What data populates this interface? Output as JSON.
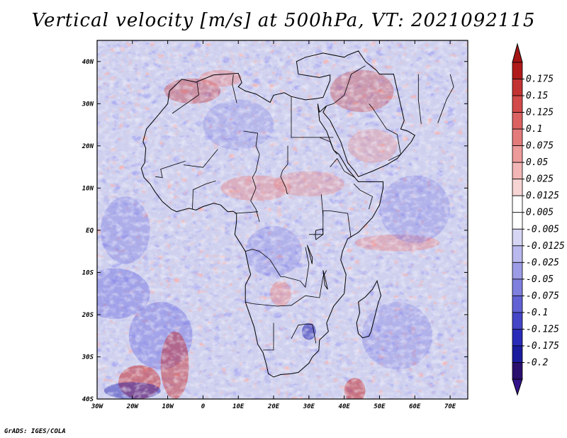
{
  "title": "Vertical velocity [m/s] at 500hPa, VT: 2021092115",
  "footer": "GrADS: IGES/COLA",
  "map": {
    "lon_range": [
      -30,
      75
    ],
    "lat_range": [
      -40,
      45
    ],
    "lat_ticks": [
      {
        "lat": 40,
        "label": "40N"
      },
      {
        "lat": 30,
        "label": "30N"
      },
      {
        "lat": 20,
        "label": "20N"
      },
      {
        "lat": 10,
        "label": "10N"
      },
      {
        "lat": 0,
        "label": "EQ"
      },
      {
        "lat": -10,
        "label": "10S"
      },
      {
        "lat": -20,
        "label": "20S"
      },
      {
        "lat": -30,
        "label": "30S"
      },
      {
        "lat": -40,
        "label": "40S"
      }
    ],
    "lon_ticks": [
      {
        "lon": -30,
        "label": "30W"
      },
      {
        "lon": -20,
        "label": "20W"
      },
      {
        "lon": -10,
        "label": "10W"
      },
      {
        "lon": 0,
        "label": "0"
      },
      {
        "lon": 10,
        "label": "10E"
      },
      {
        "lon": 20,
        "label": "20E"
      },
      {
        "lon": 30,
        "label": "30E"
      },
      {
        "lon": 40,
        "label": "40E"
      },
      {
        "lon": 50,
        "label": "50E"
      },
      {
        "lon": 60,
        "label": "60E"
      },
      {
        "lon": 70,
        "label": "70E"
      }
    ],
    "coastline_lonlat": [
      [
        -17,
        21
      ],
      [
        -16,
        24
      ],
      [
        -13,
        27
      ],
      [
        -10,
        30
      ],
      [
        -9.5,
        33
      ],
      [
        -6,
        35.8
      ],
      [
        -2,
        35.1
      ],
      [
        3,
        36.8
      ],
      [
        10,
        37.2
      ],
      [
        11,
        35
      ],
      [
        10,
        34
      ],
      [
        12,
        33
      ],
      [
        15,
        32.3
      ],
      [
        19,
        30.3
      ],
      [
        20,
        32
      ],
      [
        23,
        32.6
      ],
      [
        25,
        31.7
      ],
      [
        29,
        30.9
      ],
      [
        32,
        31.2
      ],
      [
        34,
        31.5
      ],
      [
        35,
        33.5
      ],
      [
        36,
        35.5
      ],
      [
        36,
        36.8
      ],
      [
        33,
        36.2
      ],
      [
        30,
        36.6
      ],
      [
        27,
        37
      ],
      [
        26.5,
        40
      ],
      [
        29,
        41
      ],
      [
        34,
        42
      ],
      [
        40,
        41
      ],
      [
        41,
        41.5
      ],
      [
        44,
        42.5
      ],
      [
        46,
        40
      ],
      [
        49,
        38
      ],
      [
        50,
        37
      ],
      [
        54,
        37
      ],
      [
        57,
        26
      ],
      [
        56,
        24
      ],
      [
        58,
        23.5
      ],
      [
        60,
        22.5
      ],
      [
        59,
        21
      ],
      [
        55,
        17
      ],
      [
        52,
        15.5
      ],
      [
        48,
        14
      ],
      [
        44,
        12.7
      ],
      [
        43,
        14
      ],
      [
        41,
        16
      ],
      [
        39,
        21
      ],
      [
        36,
        26
      ],
      [
        34,
        28
      ],
      [
        35,
        29.5
      ],
      [
        33,
        28
      ],
      [
        32.5,
        30
      ],
      [
        33,
        26
      ],
      [
        35,
        23.5
      ],
      [
        37,
        19
      ],
      [
        38.5,
        18
      ],
      [
        41,
        14.5
      ],
      [
        43.2,
        12.3
      ],
      [
        44,
        11.5
      ],
      [
        51,
        11.5
      ],
      [
        51,
        10
      ],
      [
        50,
        6
      ],
      [
        48,
        3
      ],
      [
        44,
        -0.5
      ],
      [
        41,
        -2
      ],
      [
        39.5,
        -5
      ],
      [
        39,
        -7
      ],
      [
        40.5,
        -10.5
      ],
      [
        40,
        -15
      ],
      [
        37,
        -18
      ],
      [
        35,
        -22
      ],
      [
        35.5,
        -24
      ],
      [
        33,
        -26
      ],
      [
        32.8,
        -28.5
      ],
      [
        31,
        -30
      ],
      [
        30,
        -31.5
      ],
      [
        27,
        -33.7
      ],
      [
        25,
        -34
      ],
      [
        22,
        -34.2
      ],
      [
        20,
        -34.8
      ],
      [
        18.5,
        -34
      ],
      [
        18,
        -32
      ],
      [
        17,
        -29
      ],
      [
        15.5,
        -27
      ],
      [
        14.5,
        -23
      ],
      [
        12,
        -17
      ],
      [
        12,
        -13
      ],
      [
        13.5,
        -10.5
      ],
      [
        13,
        -9
      ],
      [
        12,
        -5
      ],
      [
        9,
        -1
      ],
      [
        9.5,
        2
      ],
      [
        9.5,
        4
      ],
      [
        8.5,
        4.5
      ],
      [
        7,
        4.4
      ],
      [
        5,
        6
      ],
      [
        3,
        6.4
      ],
      [
        0,
        5.6
      ],
      [
        -2,
        4.8
      ],
      [
        -4,
        5.2
      ],
      [
        -7.5,
        4.4
      ],
      [
        -9,
        5
      ],
      [
        -11.5,
        6.8
      ],
      [
        -13.5,
        9
      ],
      [
        -15,
        11
      ],
      [
        -16.7,
        12.5
      ],
      [
        -17.5,
        14.7
      ],
      [
        -16.5,
        16
      ],
      [
        -16.2,
        19.5
      ],
      [
        -17,
        21
      ]
    ],
    "madagascar_lonlat": [
      [
        49.3,
        -12
      ],
      [
        50.4,
        -15.5
      ],
      [
        49.7,
        -17
      ],
      [
        48.8,
        -20
      ],
      [
        47.6,
        -24
      ],
      [
        47,
        -25.1
      ],
      [
        45.2,
        -25.5
      ],
      [
        44,
        -24.5
      ],
      [
        43.5,
        -22
      ],
      [
        44.4,
        -19.5
      ],
      [
        44,
        -17
      ],
      [
        46,
        -15.8
      ],
      [
        48,
        -14
      ],
      [
        49.3,
        -12
      ]
    ],
    "borders_lonlat": [
      [
        [
          -8.7,
          27.7
        ],
        [
          -1.2,
          32.1
        ],
        [
          -1.7,
          35.1
        ]
      ],
      [
        [
          9.6,
          30.1
        ],
        [
          8.3,
          34.6
        ],
        [
          8.6,
          36.9
        ]
      ],
      [
        [
          25,
          31.7
        ],
        [
          25,
          22
        ],
        [
          36.9,
          22
        ]
      ],
      [
        [
          24,
          20
        ],
        [
          24,
          15.7
        ],
        [
          22.5,
          14.1
        ],
        [
          22,
          12.7
        ],
        [
          23.5,
          10
        ],
        [
          23.8,
          8.7
        ],
        [
          24.2,
          8.7
        ]
      ],
      [
        [
          11.5,
          23.5
        ],
        [
          15.5,
          23
        ],
        [
          15,
          20
        ],
        [
          16,
          18
        ],
        [
          15,
          14
        ],
        [
          14,
          12.5
        ],
        [
          15,
          10
        ],
        [
          13.5,
          7
        ],
        [
          15,
          5
        ],
        [
          16,
          2
        ]
      ],
      [
        [
          -5,
          16.4
        ],
        [
          -12,
          14.5
        ],
        [
          -11.5,
          12.5
        ],
        [
          -13.5,
          12.7
        ]
      ],
      [
        [
          4.2,
          19.2
        ],
        [
          0,
          14.9
        ],
        [
          -5.5,
          15.5
        ]
      ],
      [
        [
          3.6,
          11.7
        ],
        [
          0.9,
          11
        ],
        [
          -2.8,
          9.6
        ],
        [
          -3,
          5
        ]
      ],
      [
        [
          15.6,
          4.4
        ],
        [
          9,
          4
        ]
      ],
      [
        [
          30,
          -1
        ],
        [
          34,
          -1
        ],
        [
          34,
          4.6
        ],
        [
          36,
          4.6
        ],
        [
          41,
          4
        ],
        [
          41.9,
          -1.7
        ]
      ],
      [
        [
          12,
          -5
        ],
        [
          14,
          -4.5
        ],
        [
          16,
          -5
        ],
        [
          19,
          -7
        ],
        [
          22,
          -11
        ],
        [
          23,
          -11
        ],
        [
          27.5,
          -12
        ],
        [
          29,
          -13.5
        ],
        [
          30,
          -8
        ],
        [
          29,
          -4
        ]
      ],
      [
        [
          12,
          -17
        ],
        [
          14,
          -17.4
        ],
        [
          21,
          -18
        ],
        [
          25,
          -17.8
        ],
        [
          29,
          -15.5
        ],
        [
          33,
          -16
        ],
        [
          34,
          -11
        ],
        [
          35,
          -9.5
        ]
      ],
      [
        [
          20,
          -22
        ],
        [
          20,
          -25
        ],
        [
          20,
          -28.4
        ],
        [
          17,
          -28.4
        ]
      ],
      [
        [
          25,
          -25.7
        ],
        [
          27,
          -22.5
        ],
        [
          29.3,
          -22.2
        ],
        [
          31,
          -22.3
        ],
        [
          32,
          -26.8
        ]
      ],
      [
        [
          36,
          15
        ],
        [
          38,
          17
        ],
        [
          40,
          14
        ],
        [
          43,
          12.5
        ]
      ],
      [
        [
          33,
          22
        ],
        [
          36,
          21
        ],
        [
          37,
          19
        ],
        [
          38,
          18
        ]
      ],
      [
        [
          33.5,
          8.5
        ],
        [
          34,
          3.5
        ]
      ],
      [
        [
          42.7,
          11
        ],
        [
          44.5,
          9.5
        ],
        [
          48,
          8
        ],
        [
          47,
          5
        ]
      ],
      [
        [
          35,
          29.5
        ],
        [
          37,
          30
        ],
        [
          40,
          32
        ],
        [
          42,
          37
        ],
        [
          46,
          39
        ]
      ],
      [
        [
          47,
          30
        ],
        [
          48,
          29
        ],
        [
          52,
          24
        ],
        [
          55,
          22.7
        ],
        [
          56,
          18
        ],
        [
          52.5,
          16.5
        ]
      ],
      [
        [
          61,
          37
        ],
        [
          61,
          31
        ],
        [
          61.8,
          25.2
        ]
      ],
      [
        [
          70,
          37
        ],
        [
          71,
          34
        ],
        [
          69,
          31
        ],
        [
          66.5,
          25.4
        ]
      ]
    ],
    "lakes_lonlat": [
      [
        [
          32,
          0
        ],
        [
          33.9,
          0.3
        ],
        [
          34,
          -1
        ],
        [
          32,
          -2.2
        ],
        [
          31.8,
          -1
        ],
        [
          32,
          0
        ]
      ],
      [
        [
          29.5,
          -3.5
        ],
        [
          30,
          -5
        ],
        [
          30.9,
          -8
        ],
        [
          31,
          -6.5
        ],
        [
          29.5,
          -3.5
        ]
      ],
      [
        [
          34,
          -9.5
        ],
        [
          34.5,
          -11
        ],
        [
          35.3,
          -14
        ],
        [
          34.5,
          -13
        ],
        [
          34,
          -9.5
        ]
      ]
    ]
  },
  "colorbar": {
    "labels": [
      "0.175",
      "0.15",
      "0.125",
      "0.1",
      "0.075",
      "0.05",
      "0.025",
      "0.0125",
      "0.005",
      "-0.005",
      "-0.0125",
      "-0.025",
      "-0.05",
      "-0.075",
      "-0.1",
      "-0.125",
      "-0.175",
      "-0.2"
    ],
    "colors": [
      "#b11a1a",
      "#c43333",
      "#d24a4a",
      "#dc6262",
      "#e47b7b",
      "#ec9a9a",
      "#f2b6b6",
      "#f7d4d4",
      "#ffffff",
      "#ffffff",
      "#d6d6f4",
      "#b9b9ee",
      "#9c9ce6",
      "#7f7fde",
      "#6262d4",
      "#4545c8",
      "#2b2bb9",
      "#1c1c9e",
      "#2a0f6e"
    ],
    "top_color": "#a31515",
    "bottom_color": "#33128a"
  },
  "field": {
    "background": "#ced0ee",
    "positive_color": "#e98888",
    "negative_color": "#6c6ce0",
    "strong_positive": "#c41e1e",
    "strong_negative": "#2222b0"
  }
}
